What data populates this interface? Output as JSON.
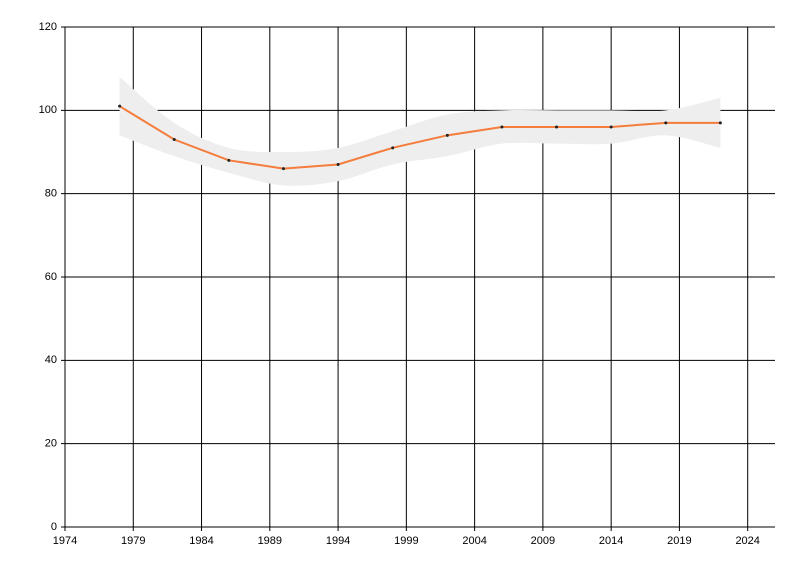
{
  "chart_data": {
    "type": "line",
    "x": [
      1978,
      1982,
      1986,
      1990,
      1994,
      1998,
      2002,
      2006,
      2010,
      2014,
      2018,
      2022
    ],
    "series": [
      {
        "color": "#f47c3c",
        "values": [
          101,
          93,
          88,
          86,
          87,
          91,
          94,
          96,
          96,
          96,
          97,
          97
        ],
        "upper": [
          108,
          97,
          91,
          90,
          91,
          95,
          99,
          100,
          100,
          100,
          100,
          103
        ],
        "lower": [
          94,
          89,
          85,
          82,
          83,
          87,
          89,
          92,
          92,
          92,
          94,
          91
        ],
        "band_color": "#eeeeee",
        "marker_color": "#222222"
      }
    ],
    "xlim": [
      1974,
      2026
    ],
    "xticks": [
      1974,
      1979,
      1984,
      1989,
      1994,
      1999,
      2004,
      2009,
      2014,
      2019,
      2024
    ],
    "ylim": [
      0,
      120
    ],
    "yticks": [
      0,
      20,
      40,
      60,
      80,
      100,
      120
    ],
    "grid": true
  }
}
